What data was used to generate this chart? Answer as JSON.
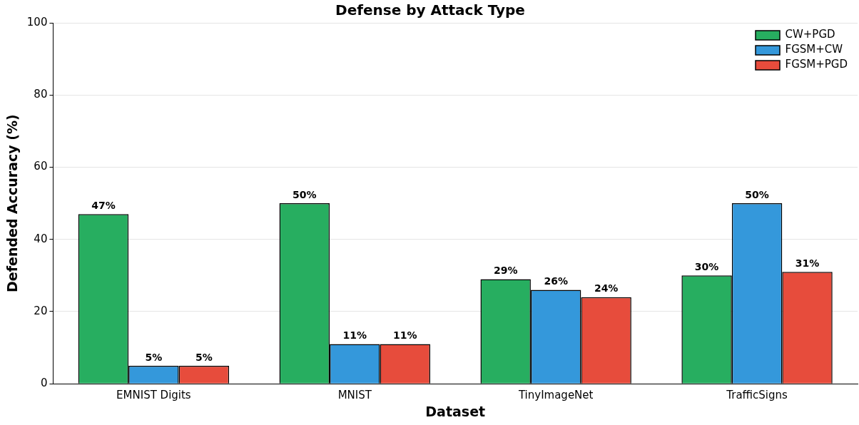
{
  "chart_data": {
    "type": "bar",
    "title": "Defense by Attack Type",
    "xlabel": "Dataset",
    "ylabel": "Defended Accuracy (%)",
    "categories": [
      "EMNIST Digits",
      "MNIST",
      "TinyImageNet",
      "TrafficSigns"
    ],
    "series": [
      {
        "name": "CW+PGD",
        "color": "#27ae60",
        "values": [
          47,
          50,
          29,
          30
        ],
        "value_labels": [
          "47%",
          "50%",
          "29%",
          "30%"
        ]
      },
      {
        "name": "FGSM+CW",
        "color": "#3498db",
        "values": [
          5,
          11,
          26,
          50
        ],
        "value_labels": [
          "5%",
          "11%",
          "26%",
          "50%"
        ]
      },
      {
        "name": "FGSM+PGD",
        "color": "#e74c3c",
        "values": [
          5,
          11,
          24,
          31
        ],
        "value_labels": [
          "5%",
          "11%",
          "24%",
          "31%"
        ]
      }
    ],
    "ylim": [
      0,
      100
    ],
    "yticks": [
      0,
      20,
      40,
      60,
      80,
      100
    ],
    "grid": "y",
    "legend": "top right"
  }
}
